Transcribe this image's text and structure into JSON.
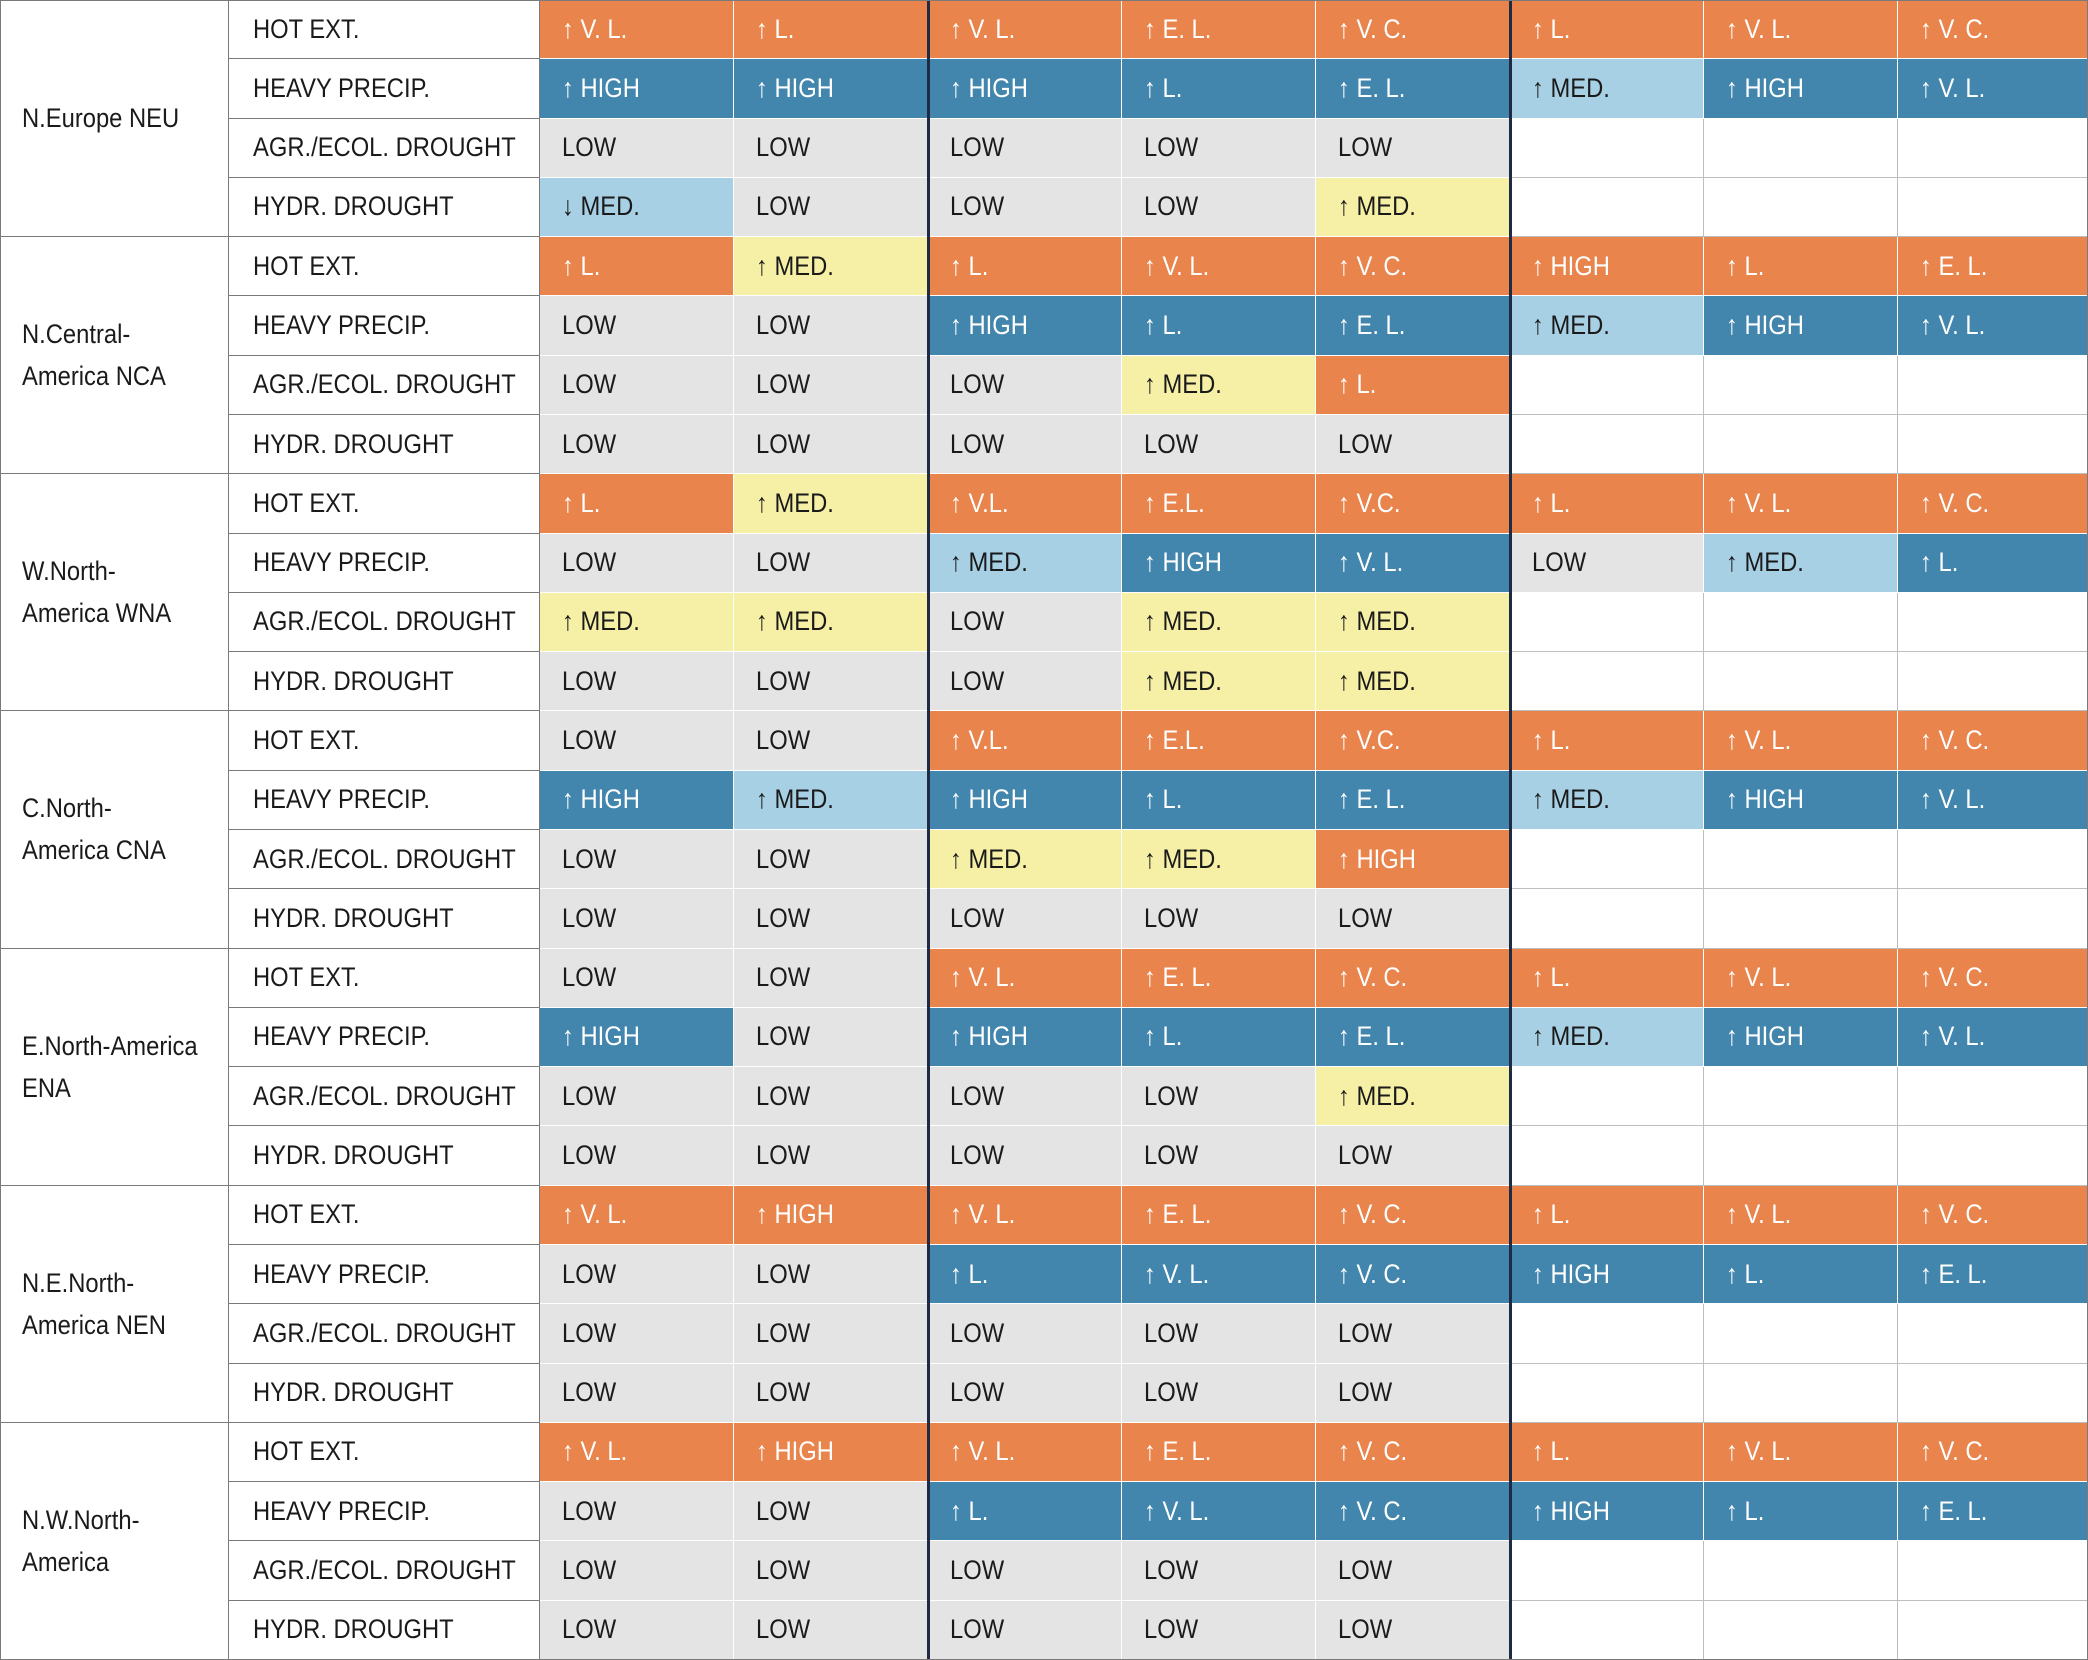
{
  "colors": {
    "orange": "#e8844c",
    "yellow": "#f6f0a6",
    "lightblue": "#a7d0e4",
    "darkblue": "#4386ad",
    "grey": "#e4e4e4",
    "white": "#ffffff"
  },
  "regions": [
    {
      "name": "N.Europe NEU",
      "rows": [
        {
          "variable": "HOT EXT.",
          "cells": [
            [
              "↑ V. L.",
              "orange"
            ],
            [
              "↑ L.",
              "orange"
            ],
            [
              "↑ V. L.",
              "orange"
            ],
            [
              "↑ E. L.",
              "orange"
            ],
            [
              "↑ V. C.",
              "orange"
            ],
            [
              "↑ L.",
              "orange"
            ],
            [
              "↑ V. L.",
              "orange"
            ],
            [
              "↑ V. C.",
              "orange"
            ]
          ]
        },
        {
          "variable": "HEAVY PRECIP.",
          "cells": [
            [
              "↑ HIGH",
              "darkblue"
            ],
            [
              "↑ HIGH",
              "darkblue"
            ],
            [
              "↑ HIGH",
              "darkblue"
            ],
            [
              "↑ L.",
              "darkblue"
            ],
            [
              "↑ E. L.",
              "darkblue"
            ],
            [
              "↑ MED.",
              "lightblue"
            ],
            [
              "↑ HIGH",
              "darkblue"
            ],
            [
              "↑ V. L.",
              "darkblue"
            ]
          ]
        },
        {
          "variable": "AGR./ECOL. DROUGHT",
          "cells": [
            [
              "LOW",
              "grey"
            ],
            [
              "LOW",
              "grey"
            ],
            [
              "LOW",
              "grey"
            ],
            [
              "LOW",
              "grey"
            ],
            [
              "LOW",
              "grey"
            ],
            [
              "",
              "white"
            ],
            [
              "",
              "white"
            ],
            [
              "",
              "white"
            ]
          ]
        },
        {
          "variable": "HYDR. DROUGHT",
          "cells": [
            [
              "↓ MED.",
              "lightblue"
            ],
            [
              "LOW",
              "grey"
            ],
            [
              "LOW",
              "grey"
            ],
            [
              "LOW",
              "grey"
            ],
            [
              "↑ MED.",
              "yellow"
            ],
            [
              "",
              "white"
            ],
            [
              "",
              "white"
            ],
            [
              "",
              "white"
            ]
          ]
        }
      ]
    },
    {
      "name": "N.Central-\nAmerica NCA",
      "rows": [
        {
          "variable": "HOT EXT.",
          "cells": [
            [
              "↑ L.",
              "orange"
            ],
            [
              "↑ MED.",
              "yellow"
            ],
            [
              "↑ L.",
              "orange"
            ],
            [
              "↑ V. L.",
              "orange"
            ],
            [
              "↑ V. C.",
              "orange"
            ],
            [
              "↑ HIGH",
              "orange"
            ],
            [
              "↑ L.",
              "orange"
            ],
            [
              "↑ E. L.",
              "orange"
            ]
          ]
        },
        {
          "variable": "HEAVY PRECIP.",
          "cells": [
            [
              "LOW",
              "grey"
            ],
            [
              "LOW",
              "grey"
            ],
            [
              "↑ HIGH",
              "darkblue"
            ],
            [
              "↑ L.",
              "darkblue"
            ],
            [
              "↑ E. L.",
              "darkblue"
            ],
            [
              "↑ MED.",
              "lightblue"
            ],
            [
              "↑ HIGH",
              "darkblue"
            ],
            [
              "↑ V. L.",
              "darkblue"
            ]
          ]
        },
        {
          "variable": "AGR./ECOL. DROUGHT",
          "cells": [
            [
              "LOW",
              "grey"
            ],
            [
              "LOW",
              "grey"
            ],
            [
              "LOW",
              "grey"
            ],
            [
              "↑ MED.",
              "yellow"
            ],
            [
              "↑ L.",
              "orange"
            ],
            [
              "",
              "white"
            ],
            [
              "",
              "white"
            ],
            [
              "",
              "white"
            ]
          ]
        },
        {
          "variable": "HYDR. DROUGHT",
          "cells": [
            [
              "LOW",
              "grey"
            ],
            [
              "LOW",
              "grey"
            ],
            [
              "LOW",
              "grey"
            ],
            [
              "LOW",
              "grey"
            ],
            [
              "LOW",
              "grey"
            ],
            [
              "",
              "white"
            ],
            [
              "",
              "white"
            ],
            [
              "",
              "white"
            ]
          ]
        }
      ]
    },
    {
      "name": "W.North-\nAmerica WNA",
      "rows": [
        {
          "variable": "HOT EXT.",
          "cells": [
            [
              "↑ L.",
              "orange"
            ],
            [
              "↑ MED.",
              "yellow"
            ],
            [
              "↑ V.L.",
              "orange"
            ],
            [
              "↑ E.L.",
              "orange"
            ],
            [
              "↑ V.C.",
              "orange"
            ],
            [
              "↑ L.",
              "orange"
            ],
            [
              "↑ V. L.",
              "orange"
            ],
            [
              "↑ V. C.",
              "orange"
            ]
          ]
        },
        {
          "variable": "HEAVY PRECIP.",
          "cells": [
            [
              "LOW",
              "grey"
            ],
            [
              "LOW",
              "grey"
            ],
            [
              "↑ MED.",
              "lightblue"
            ],
            [
              "↑ HIGH",
              "darkblue"
            ],
            [
              "↑ V. L.",
              "darkblue"
            ],
            [
              "LOW",
              "grey"
            ],
            [
              "↑ MED.",
              "lightblue"
            ],
            [
              "↑ L.",
              "darkblue"
            ]
          ]
        },
        {
          "variable": "AGR./ECOL. DROUGHT",
          "cells": [
            [
              "↑ MED.",
              "yellow"
            ],
            [
              "↑ MED.",
              "yellow"
            ],
            [
              "LOW",
              "grey"
            ],
            [
              "↑ MED.",
              "yellow"
            ],
            [
              "↑ MED.",
              "yellow"
            ],
            [
              "",
              "white"
            ],
            [
              "",
              "white"
            ],
            [
              "",
              "white"
            ]
          ]
        },
        {
          "variable": "HYDR. DROUGHT",
          "cells": [
            [
              "LOW",
              "grey"
            ],
            [
              "LOW",
              "grey"
            ],
            [
              "LOW",
              "grey"
            ],
            [
              "↑ MED.",
              "yellow"
            ],
            [
              "↑ MED.",
              "yellow"
            ],
            [
              "",
              "white"
            ],
            [
              "",
              "white"
            ],
            [
              "",
              "white"
            ]
          ]
        }
      ]
    },
    {
      "name": "C.North-\nAmerica CNA",
      "rows": [
        {
          "variable": "HOT EXT.",
          "cells": [
            [
              "LOW",
              "grey"
            ],
            [
              "LOW",
              "grey"
            ],
            [
              "↑ V.L.",
              "orange"
            ],
            [
              "↑ E.L.",
              "orange"
            ],
            [
              "↑ V.C.",
              "orange"
            ],
            [
              "↑ L.",
              "orange"
            ],
            [
              "↑ V. L.",
              "orange"
            ],
            [
              "↑ V. C.",
              "orange"
            ]
          ]
        },
        {
          "variable": "HEAVY PRECIP.",
          "cells": [
            [
              "↑ HIGH",
              "darkblue"
            ],
            [
              "↑ MED.",
              "lightblue"
            ],
            [
              "↑ HIGH",
              "darkblue"
            ],
            [
              "↑ L.",
              "darkblue"
            ],
            [
              "↑ E. L.",
              "darkblue"
            ],
            [
              "↑ MED.",
              "lightblue"
            ],
            [
              "↑ HIGH",
              "darkblue"
            ],
            [
              "↑ V. L.",
              "darkblue"
            ]
          ]
        },
        {
          "variable": "AGR./ECOL. DROUGHT",
          "cells": [
            [
              "LOW",
              "grey"
            ],
            [
              "LOW",
              "grey"
            ],
            [
              "↑ MED.",
              "yellow"
            ],
            [
              "↑ MED.",
              "yellow"
            ],
            [
              "↑ HIGH",
              "orange"
            ],
            [
              "",
              "white"
            ],
            [
              "",
              "white"
            ],
            [
              "",
              "white"
            ]
          ]
        },
        {
          "variable": "HYDR. DROUGHT",
          "cells": [
            [
              "LOW",
              "grey"
            ],
            [
              "LOW",
              "grey"
            ],
            [
              "LOW",
              "grey"
            ],
            [
              "LOW",
              "grey"
            ],
            [
              "LOW",
              "grey"
            ],
            [
              "",
              "white"
            ],
            [
              "",
              "white"
            ],
            [
              "",
              "white"
            ]
          ]
        }
      ]
    },
    {
      "name": "E.North-America\nENA",
      "rows": [
        {
          "variable": "HOT EXT.",
          "cells": [
            [
              "LOW",
              "grey"
            ],
            [
              "LOW",
              "grey"
            ],
            [
              "↑ V. L.",
              "orange"
            ],
            [
              "↑ E. L.",
              "orange"
            ],
            [
              "↑ V. C.",
              "orange"
            ],
            [
              "↑ L.",
              "orange"
            ],
            [
              "↑ V. L.",
              "orange"
            ],
            [
              "↑ V. C.",
              "orange"
            ]
          ]
        },
        {
          "variable": "HEAVY PRECIP.",
          "cells": [
            [
              "↑ HIGH",
              "darkblue"
            ],
            [
              "LOW",
              "grey"
            ],
            [
              "↑ HIGH",
              "darkblue"
            ],
            [
              "↑ L.",
              "darkblue"
            ],
            [
              "↑ E. L.",
              "darkblue"
            ],
            [
              "↑ MED.",
              "lightblue"
            ],
            [
              "↑ HIGH",
              "darkblue"
            ],
            [
              "↑ V. L.",
              "darkblue"
            ]
          ]
        },
        {
          "variable": "AGR./ECOL. DROUGHT",
          "cells": [
            [
              "LOW",
              "grey"
            ],
            [
              "LOW",
              "grey"
            ],
            [
              "LOW",
              "grey"
            ],
            [
              "LOW",
              "grey"
            ],
            [
              "↑ MED.",
              "yellow"
            ],
            [
              "",
              "white"
            ],
            [
              "",
              "white"
            ],
            [
              "",
              "white"
            ]
          ]
        },
        {
          "variable": "HYDR. DROUGHT",
          "cells": [
            [
              "LOW",
              "grey"
            ],
            [
              "LOW",
              "grey"
            ],
            [
              "LOW",
              "grey"
            ],
            [
              "LOW",
              "grey"
            ],
            [
              "LOW",
              "grey"
            ],
            [
              "",
              "white"
            ],
            [
              "",
              "white"
            ],
            [
              "",
              "white"
            ]
          ]
        }
      ]
    },
    {
      "name": "N.E.North-\nAmerica NEN",
      "rows": [
        {
          "variable": "HOT EXT.",
          "cells": [
            [
              "↑ V. L.",
              "orange"
            ],
            [
              "↑ HIGH",
              "orange"
            ],
            [
              "↑ V. L.",
              "orange"
            ],
            [
              "↑ E. L.",
              "orange"
            ],
            [
              "↑ V. C.",
              "orange"
            ],
            [
              "↑ L.",
              "orange"
            ],
            [
              "↑ V. L.",
              "orange"
            ],
            [
              "↑ V. C.",
              "orange"
            ]
          ]
        },
        {
          "variable": "HEAVY PRECIP.",
          "cells": [
            [
              "LOW",
              "grey"
            ],
            [
              "LOW",
              "grey"
            ],
            [
              "↑ L.",
              "darkblue"
            ],
            [
              "↑ V. L.",
              "darkblue"
            ],
            [
              "↑ V. C.",
              "darkblue"
            ],
            [
              "↑ HIGH",
              "darkblue"
            ],
            [
              "↑ L.",
              "darkblue"
            ],
            [
              "↑ E. L.",
              "darkblue"
            ]
          ]
        },
        {
          "variable": "AGR./ECOL. DROUGHT",
          "cells": [
            [
              "LOW",
              "grey"
            ],
            [
              "LOW",
              "grey"
            ],
            [
              "LOW",
              "grey"
            ],
            [
              "LOW",
              "grey"
            ],
            [
              "LOW",
              "grey"
            ],
            [
              "",
              "white"
            ],
            [
              "",
              "white"
            ],
            [
              "",
              "white"
            ]
          ]
        },
        {
          "variable": "HYDR. DROUGHT",
          "cells": [
            [
              "LOW",
              "grey"
            ],
            [
              "LOW",
              "grey"
            ],
            [
              "LOW",
              "grey"
            ],
            [
              "LOW",
              "grey"
            ],
            [
              "LOW",
              "grey"
            ],
            [
              "",
              "white"
            ],
            [
              "",
              "white"
            ],
            [
              "",
              "white"
            ]
          ]
        }
      ]
    },
    {
      "name": "N.W.North-\nAmerica",
      "rows": [
        {
          "variable": "HOT EXT.",
          "cells": [
            [
              "↑ V. L.",
              "orange"
            ],
            [
              "↑ HIGH",
              "orange"
            ],
            [
              "↑ V. L.",
              "orange"
            ],
            [
              "↑ E. L.",
              "orange"
            ],
            [
              "↑ V. C.",
              "orange"
            ],
            [
              "↑ L.",
              "orange"
            ],
            [
              "↑ V. L.",
              "orange"
            ],
            [
              "↑ V. C.",
              "orange"
            ]
          ]
        },
        {
          "variable": "HEAVY PRECIP.",
          "cells": [
            [
              "LOW",
              "grey"
            ],
            [
              "LOW",
              "grey"
            ],
            [
              "↑ L.",
              "darkblue"
            ],
            [
              "↑ V. L.",
              "darkblue"
            ],
            [
              "↑ V. C.",
              "darkblue"
            ],
            [
              "↑ HIGH",
              "darkblue"
            ],
            [
              "↑ L.",
              "darkblue"
            ],
            [
              "↑ E. L.",
              "darkblue"
            ]
          ]
        },
        {
          "variable": "AGR./ECOL. DROUGHT",
          "cells": [
            [
              "LOW",
              "grey"
            ],
            [
              "LOW",
              "grey"
            ],
            [
              "LOW",
              "grey"
            ],
            [
              "LOW",
              "grey"
            ],
            [
              "LOW",
              "grey"
            ],
            [
              "",
              "white"
            ],
            [
              "",
              "white"
            ],
            [
              "",
              "white"
            ]
          ]
        },
        {
          "variable": "HYDR. DROUGHT",
          "cells": [
            [
              "LOW",
              "grey"
            ],
            [
              "LOW",
              "grey"
            ],
            [
              "LOW",
              "grey"
            ],
            [
              "LOW",
              "grey"
            ],
            [
              "LOW",
              "grey"
            ],
            [
              "",
              "white"
            ],
            [
              "",
              "white"
            ],
            [
              "",
              "white"
            ]
          ]
        }
      ]
    }
  ]
}
